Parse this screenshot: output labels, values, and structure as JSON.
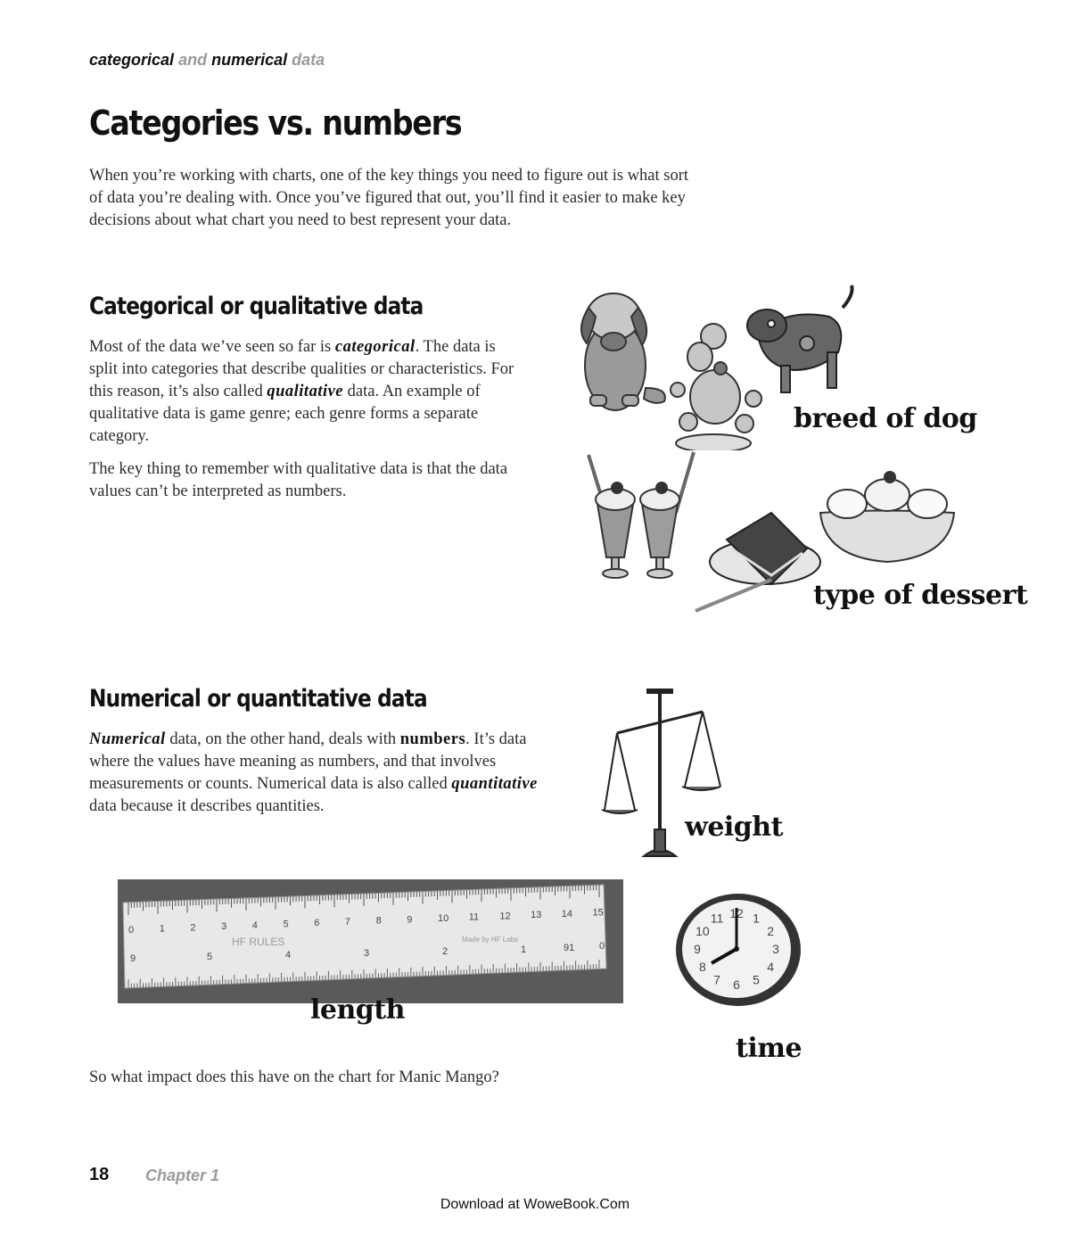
{
  "running_head": {
    "part1": "categorical",
    "part2": "and",
    "part3": "numerical",
    "part4": "data"
  },
  "title": "Categories vs. numbers",
  "intro": [
    "When you’re working with charts, one of the key things you need to figure out is what sort",
    "of data you’re dealing with. Once you’ve figured that out, you’ll find it easier to make key",
    "decisions about what chart you need to best represent your data."
  ],
  "categorical": {
    "heading": "Categorical or qualitative data",
    "p1": {
      "t1": "Most of the data we’ve seen so far is ",
      "em1": "categorical",
      "t2": ". The data is split into categories that describe qualities or characteristics. For this reason, it’s also called ",
      "em2": "qualitative",
      "t3": " data. An example of qualitative data is game genre; each genre forms a separate category."
    },
    "p2": "The key thing to remember with qualitative data is that the data values can’t be interpreted as numbers.",
    "label_dog": "breed of dog",
    "label_dessert": "type of dessert"
  },
  "numerical": {
    "heading": "Numerical or quantitative data",
    "p1": {
      "em1": "Numerical",
      "t1": " data, on the other hand, deals with ",
      "b1": "numbers",
      "t2": ". It’s data where the values have meaning as numbers, and that involves measurements or counts. Numerical data is also called ",
      "em2": "quantitative",
      "t3": " data because it describes quantities."
    },
    "label_weight": "weight",
    "label_length": "length",
    "label_time": "time",
    "ruler": {
      "top_numbers": [
        "0",
        "1",
        "2",
        "3",
        "4",
        "5",
        "6",
        "7",
        "8",
        "9",
        "10",
        "11",
        "12",
        "13",
        "14",
        "15"
      ],
      "bottom_numbers": [
        "9",
        "5",
        "4",
        "3",
        "2",
        "1",
        "91",
        "0"
      ],
      "brand": "HF RULES",
      "maker": "Made by HF Labs"
    },
    "clock_numbers": [
      "12",
      "1",
      "2",
      "3",
      "4",
      "5",
      "6",
      "7",
      "8",
      "9",
      "10",
      "11"
    ]
  },
  "closing": "So what impact does this have on the chart for Manic Mango?",
  "footer": {
    "page_number": "18",
    "chapter": "Chapter 1",
    "download": "Download at WoweBook.Com"
  }
}
